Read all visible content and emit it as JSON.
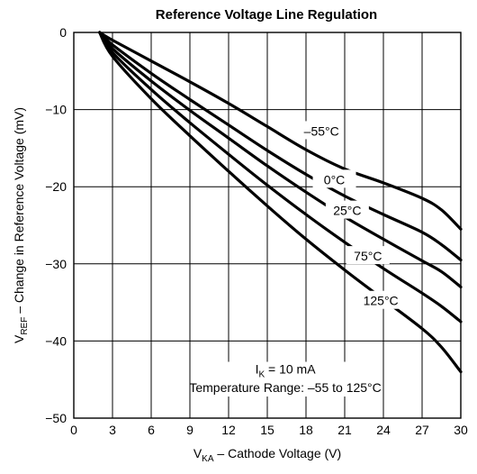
{
  "chart_data": {
    "type": "line",
    "title": "Reference Voltage Line Regulation",
    "xlabel": {
      "main": "V",
      "sub": "KA",
      "rest": " – Cathode Voltage (V)"
    },
    "ylabel": {
      "main": "V",
      "sub": "REF",
      "rest": " – Change in Reference Voltage (mV)"
    },
    "xlim": [
      0,
      30
    ],
    "ylim": [
      -50,
      0
    ],
    "xticks": [
      0,
      3,
      6,
      9,
      12,
      15,
      18,
      21,
      24,
      27,
      30
    ],
    "yticks": [
      0,
      -10,
      -20,
      -30,
      -40,
      -50
    ],
    "grid": true,
    "annotation": {
      "current": {
        "main": "I",
        "sub": "K",
        "rest": " = 10 mA"
      },
      "range": "Temperature Range: –55 to 125°C"
    },
    "series": [
      {
        "name": "–55°C",
        "x": [
          2,
          3,
          6,
          9,
          12,
          15,
          18,
          21,
          24,
          27,
          28.5,
          30
        ],
        "y": [
          0,
          -1,
          -3.7,
          -6.4,
          -9.2,
          -12.2,
          -15.2,
          -17.7,
          -19.5,
          -21.5,
          -23,
          -25.5
        ]
      },
      {
        "name": "0°C",
        "x": [
          2,
          3,
          6,
          9,
          12,
          15,
          18,
          21,
          24,
          27,
          28.5,
          30
        ],
        "y": [
          0,
          -1.6,
          -5.3,
          -8.7,
          -12,
          -15.3,
          -18.4,
          -21.2,
          -23.6,
          -25.9,
          -27.5,
          -29.5
        ]
      },
      {
        "name": "25°C",
        "x": [
          2,
          3,
          6,
          9,
          12,
          15,
          18,
          21,
          24,
          27,
          28.5,
          30
        ],
        "y": [
          0,
          -2.1,
          -6.3,
          -10.1,
          -13.7,
          -17.3,
          -20.7,
          -23.9,
          -26.8,
          -29.6,
          -31,
          -33
        ]
      },
      {
        "name": "75°C",
        "x": [
          2,
          3,
          6,
          9,
          12,
          15,
          18,
          21,
          24,
          27,
          28.5,
          30
        ],
        "y": [
          0,
          -2.6,
          -7.4,
          -11.7,
          -15.8,
          -19.8,
          -23.6,
          -27.2,
          -30.6,
          -33.8,
          -35.5,
          -37.5
        ]
      },
      {
        "name": "125°C",
        "x": [
          2,
          3,
          6,
          9,
          12,
          15,
          18,
          21,
          24,
          27,
          28.5,
          30
        ],
        "y": [
          0,
          -3.1,
          -8.6,
          -13.4,
          -18,
          -22.5,
          -26.8,
          -30.8,
          -34.6,
          -38.4,
          -40.8,
          -44
        ]
      }
    ]
  }
}
